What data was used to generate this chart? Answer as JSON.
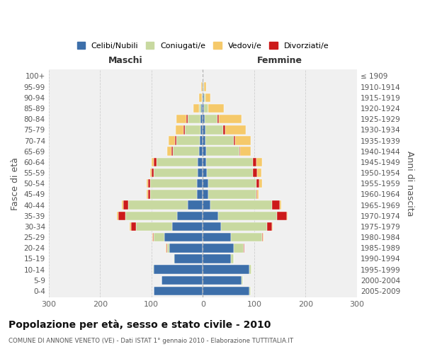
{
  "age_groups": [
    "0-4",
    "5-9",
    "10-14",
    "15-19",
    "20-24",
    "25-29",
    "30-34",
    "35-39",
    "40-44",
    "45-49",
    "50-54",
    "55-59",
    "60-64",
    "65-69",
    "70-74",
    "75-79",
    "80-84",
    "85-89",
    "90-94",
    "95-99",
    "100+"
  ],
  "birth_years": [
    "2005-2009",
    "2000-2004",
    "1995-1999",
    "1990-1994",
    "1985-1989",
    "1980-1984",
    "1975-1979",
    "1970-1974",
    "1965-1969",
    "1960-1964",
    "1955-1959",
    "1950-1954",
    "1945-1949",
    "1940-1944",
    "1935-1939",
    "1930-1934",
    "1925-1929",
    "1920-1924",
    "1915-1919",
    "1910-1914",
    "≤ 1909"
  ],
  "males": {
    "celibi": [
      95,
      80,
      95,
      55,
      65,
      75,
      60,
      50,
      30,
      12,
      12,
      10,
      10,
      8,
      6,
      5,
      5,
      3,
      1,
      1,
      0
    ],
    "coniugati": [
      0,
      0,
      2,
      2,
      5,
      20,
      70,
      100,
      115,
      90,
      90,
      85,
      80,
      50,
      45,
      30,
      25,
      5,
      1,
      0,
      0
    ],
    "vedovi": [
      0,
      0,
      0,
      0,
      1,
      1,
      2,
      2,
      2,
      2,
      2,
      3,
      5,
      8,
      12,
      15,
      20,
      10,
      5,
      2,
      0
    ],
    "divorziati": [
      0,
      0,
      0,
      0,
      1,
      2,
      10,
      15,
      10,
      5,
      5,
      5,
      5,
      3,
      3,
      3,
      2,
      0,
      0,
      0,
      0
    ]
  },
  "females": {
    "nubili": [
      90,
      75,
      90,
      55,
      60,
      55,
      35,
      30,
      15,
      10,
      10,
      8,
      7,
      6,
      5,
      5,
      4,
      3,
      2,
      1,
      0
    ],
    "coniugate": [
      3,
      3,
      5,
      5,
      20,
      60,
      90,
      115,
      120,
      95,
      95,
      90,
      90,
      65,
      55,
      35,
      25,
      8,
      3,
      1,
      0
    ],
    "vedove": [
      0,
      0,
      0,
      0,
      0,
      1,
      1,
      2,
      2,
      3,
      6,
      8,
      10,
      20,
      30,
      40,
      45,
      30,
      10,
      5,
      0
    ],
    "divorziate": [
      0,
      0,
      0,
      0,
      1,
      2,
      10,
      18,
      15,
      1,
      5,
      8,
      8,
      2,
      3,
      3,
      2,
      0,
      0,
      0,
      0
    ]
  },
  "color_celibi": "#3d6faa",
  "color_coniugati": "#c8d9a0",
  "color_vedovi": "#f5c96a",
  "color_divorziati": "#cc1a1a",
  "title": "Popolazione per età, sesso e stato civile - 2010",
  "subtitle": "COMUNE DI ANNONE VENETO (VE) - Dati ISTAT 1° gennaio 2010 - Elaborazione TUTTITALIA.IT",
  "label_maschi": "Maschi",
  "label_femmine": "Femmine",
  "ylabel_left": "Fasce di età",
  "ylabel_right": "Anni di nascita",
  "legend_labels": [
    "Celibi/Nubili",
    "Coniugati/e",
    "Vedovi/e",
    "Divorziati/e"
  ],
  "xlim": 300,
  "xticks": [
    -300,
    -200,
    -100,
    0,
    100,
    200,
    300
  ],
  "xticklabels": [
    "300",
    "200",
    "100",
    "0",
    "100",
    "200",
    "300"
  ],
  "bg_color": "#ffffff",
  "plot_bg": "#f0f0f0",
  "grid_color": "#cccccc"
}
